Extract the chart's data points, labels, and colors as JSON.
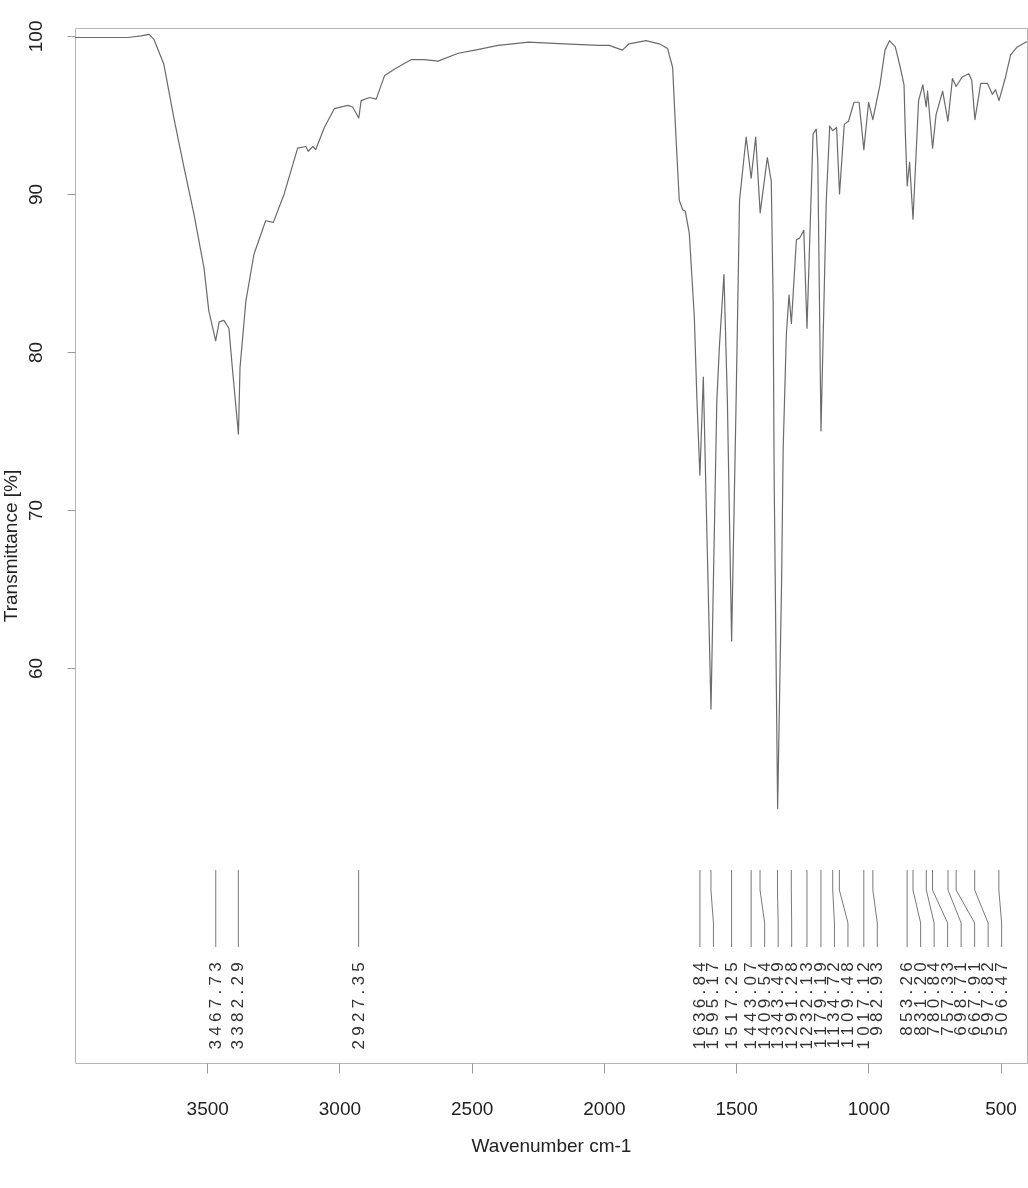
{
  "chart_data": {
    "type": "line",
    "xlabel": "Wavenumber cm-1",
    "ylabel": "Transmittance [%]",
    "color": "#6b6b6b",
    "xlim": [
      4000,
      400
    ],
    "xticks": [
      3500,
      3000,
      2500,
      2000,
      1500,
      1000,
      500
    ],
    "ylim": [
      35,
      100.5
    ],
    "yticks": [
      60,
      70,
      80,
      90,
      100
    ],
    "x": [
      4000,
      3900,
      3800,
      3750,
      3720,
      3702,
      3664,
      3626,
      3588,
      3550,
      3512,
      3494,
      3468,
      3455,
      3437,
      3418,
      3405,
      3382,
      3376,
      3354,
      3323,
      3279,
      3250,
      3209,
      3158,
      3127,
      3118,
      3101,
      3090,
      3057,
      3019,
      2968,
      2950,
      2927,
      2918,
      2886,
      2861,
      2829,
      2791,
      2728,
      2680,
      2627,
      2551,
      2487,
      2400,
      2285,
      2150,
      2019,
      1980,
      1930,
      1905,
      1841,
      1791,
      1759,
      1740,
      1728,
      1715,
      1702,
      1692,
      1677,
      1658,
      1648,
      1637,
      1624,
      1615,
      1595,
      1573,
      1563,
      1546,
      1533,
      1517,
      1500,
      1487,
      1462,
      1443,
      1426,
      1409,
      1382,
      1367,
      1360,
      1356,
      1343,
      1328,
      1322,
      1310,
      1300,
      1291,
      1272,
      1260,
      1244,
      1232,
      1209,
      1197,
      1191,
      1179,
      1159,
      1146,
      1135,
      1120,
      1109,
      1091,
      1075,
      1054,
      1035,
      1017,
      999,
      983,
      956,
      937,
      920,
      898,
      879,
      865,
      860,
      853,
      844,
      831,
      810,
      794,
      781,
      776,
      757,
      744,
      719,
      699,
      682,
      668,
      645,
      620,
      609,
      597,
      575,
      550,
      531,
      519,
      506,
      481,
      462,
      437,
      405,
      400
    ],
    "values": [
      99.9,
      99.9,
      99.9,
      100.0,
      100.1,
      99.8,
      98.2,
      94.8,
      91.7,
      88.7,
      85.3,
      82.6,
      80.7,
      81.9,
      82.0,
      81.5,
      79.0,
      74.8,
      79.0,
      83.2,
      86.2,
      88.3,
      88.2,
      90.0,
      92.9,
      93.0,
      92.7,
      93.0,
      92.8,
      94.2,
      95.4,
      95.6,
      95.5,
      94.8,
      95.9,
      96.1,
      96.0,
      97.5,
      97.9,
      98.5,
      98.5,
      98.4,
      98.9,
      99.1,
      99.4,
      99.6,
      99.5,
      99.4,
      99.4,
      99.1,
      99.5,
      99.7,
      99.5,
      99.2,
      98.0,
      93.8,
      89.6,
      89.0,
      88.9,
      87.5,
      82.2,
      76.9,
      72.2,
      78.4,
      71.8,
      57.4,
      76.9,
      80.4,
      84.9,
      76.9,
      61.7,
      76.9,
      89.6,
      93.6,
      91.0,
      93.6,
      88.8,
      92.3,
      90.8,
      83.2,
      71.8,
      51.1,
      65.5,
      73.9,
      81.1,
      83.6,
      81.8,
      87.1,
      87.2,
      87.7,
      81.5,
      93.8,
      94.1,
      92.0,
      75.0,
      89.6,
      94.3,
      94.0,
      94.2,
      90.0,
      94.4,
      94.6,
      95.8,
      95.8,
      92.8,
      95.8,
      94.7,
      96.9,
      99.1,
      99.7,
      99.3,
      98.0,
      96.9,
      93.8,
      90.5,
      92.0,
      88.4,
      95.9,
      96.9,
      95.5,
      96.5,
      92.9,
      95.0,
      96.5,
      94.6,
      97.3,
      96.8,
      97.4,
      97.6,
      97.2,
      94.7,
      97.0,
      97.0,
      96.3,
      96.6,
      95.9,
      97.4,
      98.8,
      99.3,
      99.6,
      99.6
    ],
    "annotations": [
      {
        "text": "3467.73",
        "x": 3467.73
      },
      {
        "text": "3382.29",
        "x": 3382.29
      },
      {
        "text": "2927.35",
        "x": 2927.35
      },
      {
        "text": "1636.84",
        "x": 1636.84
      },
      {
        "text": "1595.17",
        "x": 1595.17
      },
      {
        "text": "1517.25",
        "x": 1517.25
      },
      {
        "text": "1443.07",
        "x": 1443.07
      },
      {
        "text": "1409.54",
        "x": 1409.54
      },
      {
        "text": "1343.49",
        "x": 1343.49
      },
      {
        "text": "1291.28",
        "x": 1291.28
      },
      {
        "text": "1232.13",
        "x": 1232.13
      },
      {
        "text": "1179.19",
        "x": 1179.19
      },
      {
        "text": "1134.72",
        "x": 1134.72
      },
      {
        "text": "1109.48",
        "x": 1109.48
      },
      {
        "text": "1017.12",
        "x": 1017.12
      },
      {
        "text": "982.93",
        "x": 982.93
      },
      {
        "text": "853.26",
        "x": 853.26
      },
      {
        "text": "831.20",
        "x": 831.2
      },
      {
        "text": "780.84",
        "x": 780.84
      },
      {
        "text": "757.33",
        "x": 757.33
      },
      {
        "text": "698.71",
        "x": 698.71
      },
      {
        "text": "667.91",
        "x": 667.91
      },
      {
        "text": "597.82",
        "x": 597.82
      },
      {
        "text": "506.47",
        "x": 506.47
      }
    ]
  }
}
